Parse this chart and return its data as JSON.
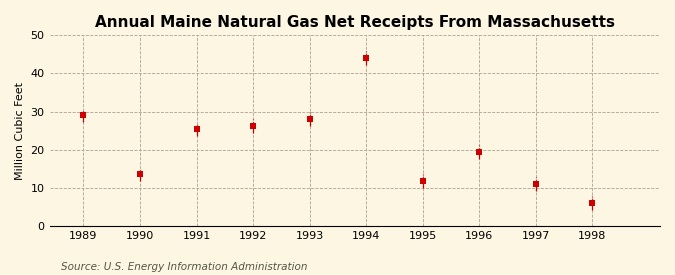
{
  "title": "Annual Maine Natural Gas Net Receipts From Massachusetts",
  "ylabel": "Million Cubic Feet",
  "source": "Source: U.S. Energy Information Administration",
  "years": [
    1989,
    1990,
    1991,
    1992,
    1993,
    1994,
    1995,
    1996,
    1997,
    1998
  ],
  "values": [
    29.0,
    13.5,
    25.3,
    26.3,
    28.0,
    44.0,
    11.8,
    19.3,
    11.0,
    6.0
  ],
  "ylim": [
    0,
    50
  ],
  "yticks": [
    0,
    10,
    20,
    30,
    40,
    50
  ],
  "xlim": [
    1988.4,
    1999.2
  ],
  "xticks": [
    1989,
    1990,
    1991,
    1992,
    1993,
    1994,
    1995,
    1996,
    1997,
    1998
  ],
  "marker_color": "#cc0000",
  "marker": "s",
  "marker_size": 4,
  "background_color": "#fdf6e3",
  "grid_color": "#b0a090",
  "title_fontsize": 11,
  "label_fontsize": 8,
  "tick_fontsize": 8,
  "source_fontsize": 7.5
}
